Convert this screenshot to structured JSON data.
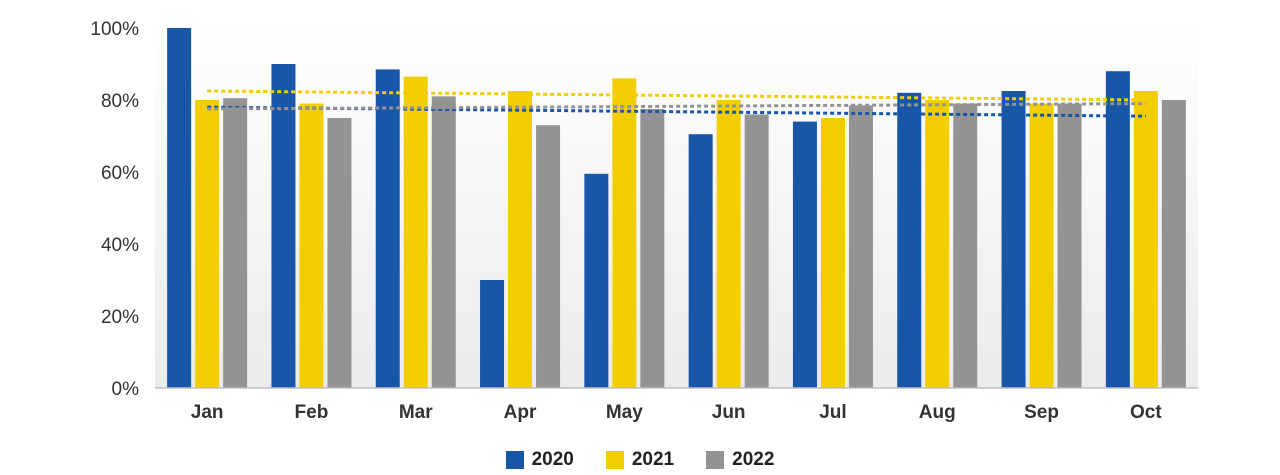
{
  "chart_data": {
    "type": "bar",
    "title": "",
    "xlabel": "",
    "ylabel": "",
    "categories": [
      "Jan",
      "Feb",
      "Mar",
      "Apr",
      "May",
      "Jun",
      "Jul",
      "Aug",
      "Sep",
      "Oct"
    ],
    "ylim": [
      0,
      100
    ],
    "yticks": [
      "0%",
      "20%",
      "40%",
      "60%",
      "80%",
      "100%"
    ],
    "series": [
      {
        "name": "2020",
        "color": "#1856a8",
        "values": [
          100,
          90,
          88.5,
          30,
          59.5,
          70.5,
          74,
          82,
          82.5,
          88
        ]
      },
      {
        "name": "2021",
        "color": "#f2cd00",
        "values": [
          80,
          79,
          86.5,
          82.5,
          86,
          80,
          75,
          80,
          79,
          82.5
        ]
      },
      {
        "name": "2022",
        "color": "#939393",
        "values": [
          80.5,
          75,
          81,
          73,
          77.5,
          76,
          78.5,
          79,
          79,
          80
        ]
      }
    ],
    "trendlines": [
      {
        "series": "2020",
        "color": "#1856a8",
        "start": 78,
        "end": 75.5
      },
      {
        "series": "2021",
        "color": "#f2cd00",
        "start": 82.5,
        "end": 80
      },
      {
        "series": "2022",
        "color": "#939393",
        "start": 77.5,
        "end": 79
      }
    ],
    "legend_position": "bottom",
    "grid": false
  }
}
